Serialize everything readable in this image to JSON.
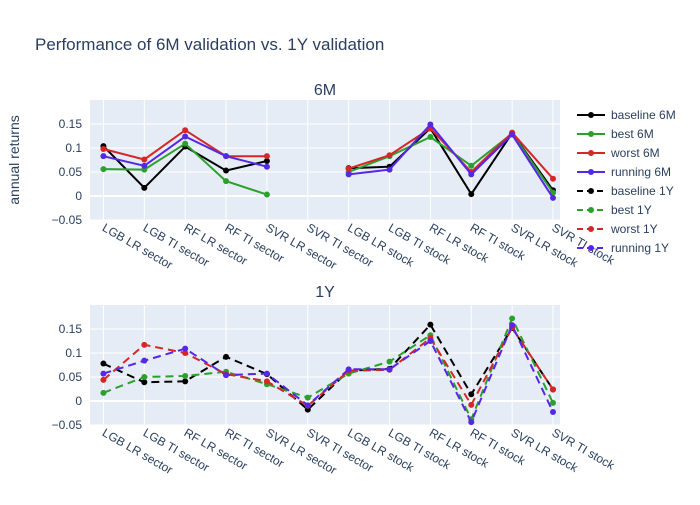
{
  "colors": {
    "baseline": "#000000",
    "best": "#2ca02c",
    "worst": "#d62728",
    "running": "#5527e6",
    "plot_bg": "#e5ecf6",
    "text": "#2a3f5f",
    "grid": "#ffffff"
  },
  "chart_data": {
    "type": "line",
    "title": "Performance of 6M validation vs. 1Y validation",
    "ylabel": "annual returns",
    "categories": [
      "LGB LR sector",
      "LGB TI sector",
      "RF LR sector",
      "RF TI sector",
      "SVR LR sector",
      "SVR TI sector",
      "LGB LR stock",
      "LGB TI stock",
      "RF LR stock",
      "RF TI stock",
      "SVR LR stock",
      "SVR TI stock"
    ],
    "ylim": [
      -0.05,
      0.2
    ],
    "yticks": [
      -0.05,
      0,
      0.05,
      0.1,
      0.15
    ],
    "ytick_labels": [
      "−0.05",
      "0",
      "0.05",
      "0.1",
      "0.15"
    ],
    "legend_position": "right",
    "subplots": [
      {
        "title": "6M",
        "line_style": "solid",
        "series": [
          {
            "name": "baseline 6M",
            "color_key": "baseline",
            "values": [
              0.104,
              0.017,
              0.103,
              0.053,
              0.073,
              null,
              0.058,
              0.061,
              0.141,
              0.004,
              0.131,
              0.012
            ]
          },
          {
            "name": "best 6M",
            "color_key": "best",
            "values": [
              0.056,
              0.055,
              0.109,
              0.031,
              0.003,
              null,
              0.05,
              0.083,
              0.123,
              0.063,
              0.13,
              0.007
            ]
          },
          {
            "name": "worst 6M",
            "color_key": "worst",
            "values": [
              0.098,
              0.076,
              0.137,
              0.083,
              0.083,
              null,
              0.057,
              0.085,
              0.141,
              0.05,
              0.132,
              0.036
            ]
          },
          {
            "name": "running 6M",
            "color_key": "running",
            "values": [
              0.083,
              0.063,
              0.124,
              0.083,
              0.061,
              null,
              0.045,
              0.055,
              0.149,
              0.045,
              0.128,
              -0.004
            ]
          }
        ]
      },
      {
        "title": "1Y",
        "line_style": "dashed",
        "series": [
          {
            "name": "baseline 1Y",
            "color_key": "baseline",
            "values": [
              0.078,
              0.039,
              0.041,
              0.092,
              0.056,
              -0.018,
              0.063,
              0.067,
              0.159,
              0.014,
              0.152,
              0.024
            ]
          },
          {
            "name": "best 1Y",
            "color_key": "best",
            "values": [
              0.017,
              0.05,
              0.052,
              0.061,
              0.035,
              0.007,
              0.057,
              0.082,
              0.137,
              -0.038,
              0.172,
              -0.004
            ]
          },
          {
            "name": "worst 1Y",
            "color_key": "worst",
            "values": [
              0.044,
              0.117,
              0.1,
              0.056,
              0.041,
              -0.01,
              0.063,
              0.065,
              0.131,
              -0.008,
              0.153,
              0.024
            ]
          },
          {
            "name": "running 1Y",
            "color_key": "running",
            "values": [
              0.057,
              0.084,
              0.109,
              0.054,
              0.057,
              -0.009,
              0.066,
              0.066,
              0.125,
              -0.044,
              0.158,
              -0.023
            ]
          }
        ]
      }
    ]
  }
}
